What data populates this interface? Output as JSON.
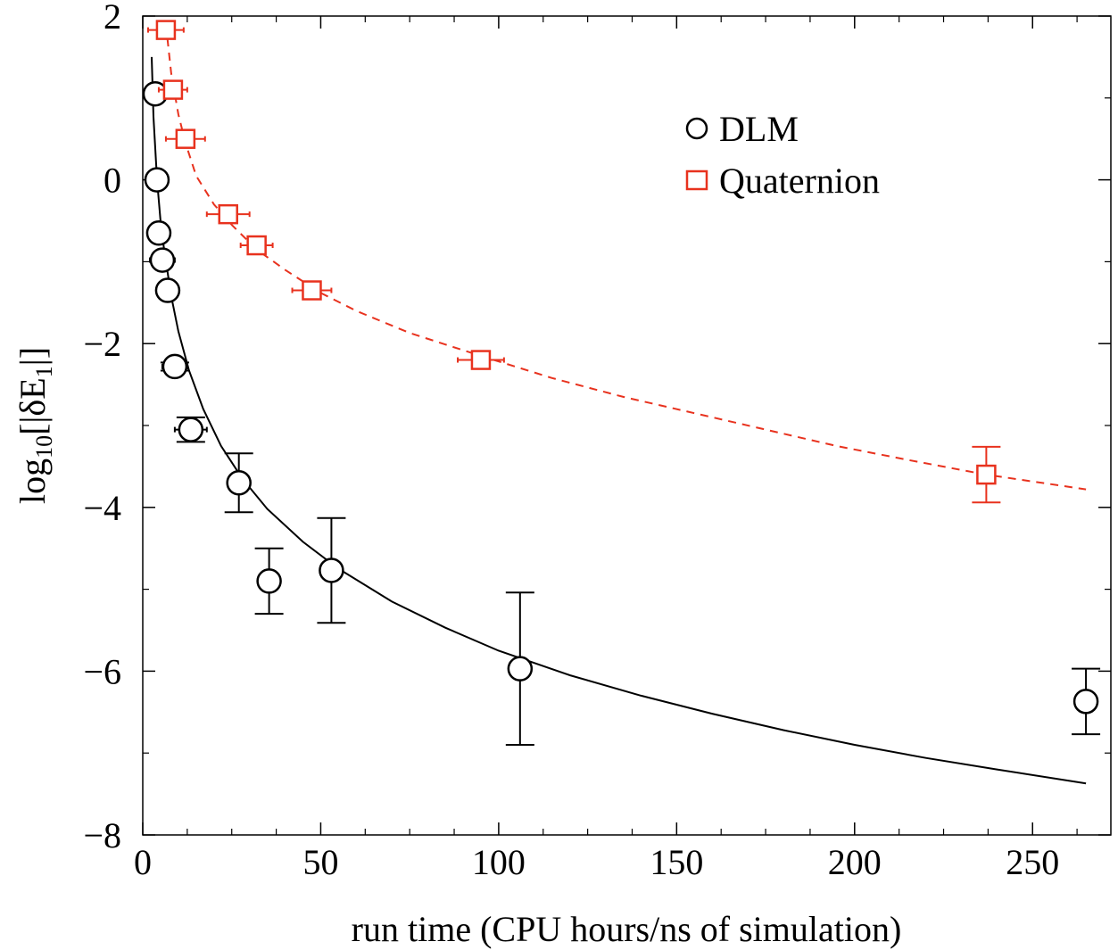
{
  "chart_data": {
    "type": "scatter",
    "title": "",
    "xlabel": "run time (CPU hours/ns of simulation)",
    "ylabel": {
      "prefix": "log",
      "sub": "10",
      "mid": "[|δE",
      "sub2": "1",
      "suffix": "|]"
    },
    "xlim": [
      0,
      272
    ],
    "ylim": [
      -8,
      2
    ],
    "xticks": [
      0,
      50,
      100,
      150,
      200,
      250
    ],
    "xtick_labels": [
      "0",
      "50",
      "100",
      "150",
      "200",
      "250"
    ],
    "yticks": [
      -8,
      -6,
      -4,
      -2,
      0,
      2
    ],
    "ytick_labels": [
      "−8",
      "−6",
      "−4",
      "−2",
      "0",
      "2"
    ],
    "grid": false,
    "legend_position": "top-right",
    "series": [
      {
        "name": "DLM",
        "color": "#000000",
        "marker": "circle",
        "points": [
          {
            "x": 3.5,
            "y": 1.05,
            "xerr": 2.0,
            "yerr": 0
          },
          {
            "x": 4.0,
            "y": 0.0,
            "xerr": 2.5,
            "yerr": 0
          },
          {
            "x": 4.5,
            "y": -0.65,
            "xerr": 3.0,
            "yerr": 0
          },
          {
            "x": 5.5,
            "y": -0.98,
            "xerr": 3.5,
            "yerr": 0
          },
          {
            "x": 7.0,
            "y": -1.35,
            "xerr": 3.0,
            "yerr": 0
          },
          {
            "x": 9.0,
            "y": -2.28,
            "xerr": 3.5,
            "yerr": 0.05
          },
          {
            "x": 13.5,
            "y": -3.05,
            "xerr": 4.5,
            "yerr": 0.15
          },
          {
            "x": 27.0,
            "y": -3.7,
            "xerr": 0,
            "yerr": 0.36
          },
          {
            "x": 35.5,
            "y": -4.9,
            "xerr": 0,
            "yerr": 0.4
          },
          {
            "x": 53.0,
            "y": -4.77,
            "xerr": 0,
            "yerr": 0.64
          },
          {
            "x": 106.0,
            "y": -5.97,
            "xerr": 0,
            "yerr": 0.93
          },
          {
            "x": 265.0,
            "y": -6.37,
            "xerr": 0,
            "yerr": 0.4
          }
        ],
        "fit": [
          [
            2.5,
            1.5
          ],
          [
            3,
            0.77
          ],
          [
            4,
            0.0
          ],
          [
            5,
            -0.5
          ],
          [
            6,
            -0.85
          ],
          [
            8,
            -1.42
          ],
          [
            10,
            -1.85
          ],
          [
            13,
            -2.33
          ],
          [
            17,
            -2.8
          ],
          [
            22,
            -3.25
          ],
          [
            28,
            -3.65
          ],
          [
            35,
            -4.02
          ],
          [
            45,
            -4.42
          ],
          [
            55,
            -4.75
          ],
          [
            70,
            -5.15
          ],
          [
            85,
            -5.47
          ],
          [
            100,
            -5.75
          ],
          [
            120,
            -6.05
          ],
          [
            140,
            -6.3
          ],
          [
            160,
            -6.52
          ],
          [
            180,
            -6.72
          ],
          [
            200,
            -6.9
          ],
          [
            220,
            -7.06
          ],
          [
            240,
            -7.2
          ],
          [
            265,
            -7.37
          ]
        ]
      },
      {
        "name": "Quaternion",
        "color": "#e8321e",
        "marker": "square",
        "points": [
          {
            "x": 6.5,
            "y": 1.83,
            "xerr": 5.0,
            "yerr": 0
          },
          {
            "x": 8.5,
            "y": 1.1,
            "xerr": 4.0,
            "yerr": 0
          },
          {
            "x": 12.0,
            "y": 0.5,
            "xerr": 5.5,
            "yerr": 0
          },
          {
            "x": 24.0,
            "y": -0.42,
            "xerr": 6.0,
            "yerr": 0
          },
          {
            "x": 32.0,
            "y": -0.8,
            "xerr": 4.5,
            "yerr": 0
          },
          {
            "x": 47.5,
            "y": -1.35,
            "xerr": 5.5,
            "yerr": 0
          },
          {
            "x": 95.0,
            "y": -2.2,
            "xerr": 6.5,
            "yerr": 0
          },
          {
            "x": 237.0,
            "y": -3.6,
            "xerr": 0,
            "yerr": 0.34
          }
        ],
        "fit": [
          [
            6.5,
            1.9
          ],
          [
            8,
            1.3
          ],
          [
            10,
            0.8
          ],
          [
            12,
            0.45
          ],
          [
            15,
            0.05
          ],
          [
            20,
            -0.3
          ],
          [
            25,
            -0.55
          ],
          [
            32,
            -0.85
          ],
          [
            40,
            -1.1
          ],
          [
            50,
            -1.38
          ],
          [
            60,
            -1.6
          ],
          [
            75,
            -1.87
          ],
          [
            95,
            -2.15
          ],
          [
            115,
            -2.42
          ],
          [
            135,
            -2.65
          ],
          [
            155,
            -2.85
          ],
          [
            175,
            -3.05
          ],
          [
            195,
            -3.25
          ],
          [
            215,
            -3.42
          ],
          [
            237,
            -3.6
          ],
          [
            265,
            -3.78
          ]
        ]
      }
    ]
  }
}
